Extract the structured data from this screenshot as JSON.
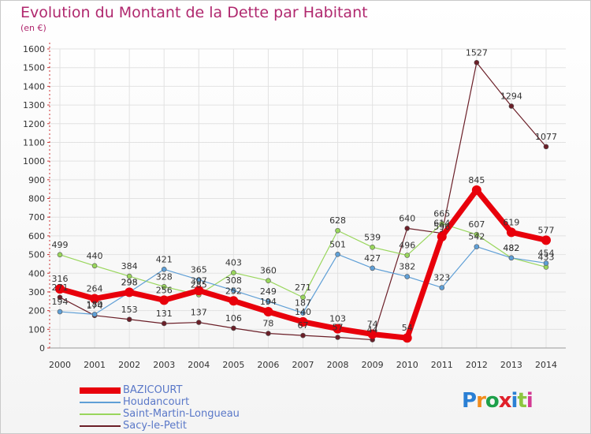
{
  "title": "Evolution du Montant de la Dette par Habitant",
  "subtitle": "(en €)",
  "logo": {
    "text": "Proxiti",
    "letter_colors": [
      "#2a7fd4",
      "#f28c1c",
      "#1ea04a",
      "#e0202a",
      "#2a7fd4",
      "#8cc63f",
      "#d33a93"
    ]
  },
  "chart_data": {
    "type": "line",
    "title": "Evolution du Montant de la Dette par Habitant",
    "subtitle": "(en €)",
    "x": [
      "2000",
      "2001",
      "2002",
      "2003",
      "2004",
      "2005",
      "2006",
      "2007",
      "2008",
      "2009",
      "2010",
      "2011",
      "2012",
      "2013",
      "2014"
    ],
    "ylim": [
      0,
      1600
    ],
    "yticks": [
      0,
      100,
      200,
      300,
      400,
      500,
      600,
      700,
      800,
      900,
      1000,
      1100,
      1200,
      1300,
      1400,
      1500,
      1600
    ],
    "grid": true,
    "legend_position": "bottom-left",
    "series": [
      {
        "name": "BAZICOURT",
        "color": "#e8000b",
        "values": [
          316,
          264,
          298,
          256,
          307,
          252,
          194,
          140,
          103,
          74,
          54,
          596,
          845,
          619,
          577
        ]
      },
      {
        "name": "Houdancourt",
        "color": "#5f9fd6",
        "values": [
          194,
          180,
          298,
          421,
          365,
          308,
          249,
          187,
          501,
          427,
          382,
          323,
          542,
          482,
          454
        ]
      },
      {
        "name": "Saint-Martin-Longueau",
        "color": "#99d65c",
        "values": [
          499,
          440,
          384,
          328,
          285,
          403,
          360,
          271,
          628,
          539,
          496,
          665,
          607,
          482,
          433
        ]
      },
      {
        "name": "Sacy-le-Petit",
        "color": "#6b1f28",
        "values": [
          271,
          174,
          153,
          131,
          137,
          106,
          78,
          67,
          57,
          44,
          640,
          614,
          1527,
          1294,
          1077
        ]
      }
    ]
  }
}
